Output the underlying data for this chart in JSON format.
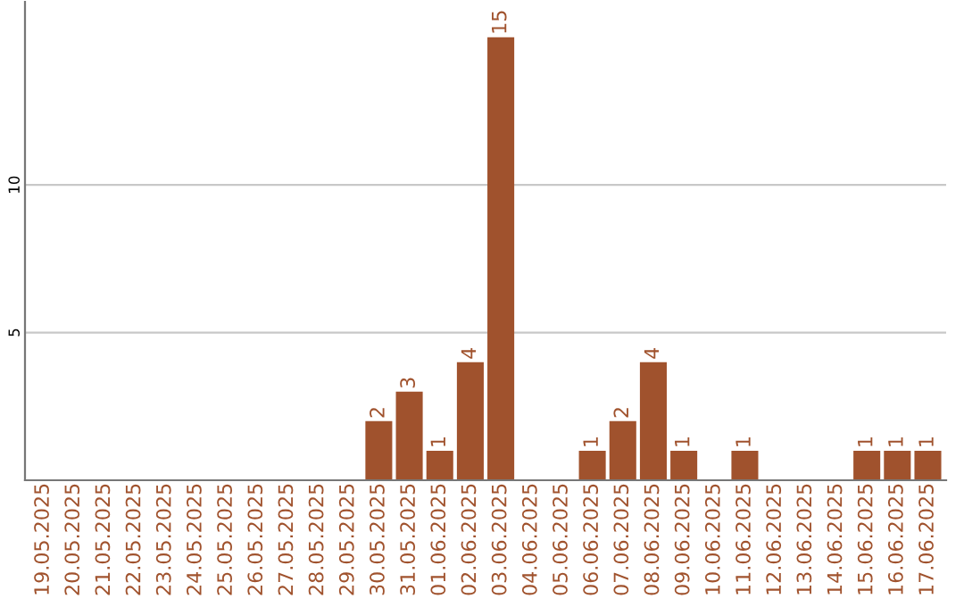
{
  "chart_data": {
    "type": "bar",
    "categories": [
      "19.05.2025",
      "20.05.2025",
      "21.05.2025",
      "22.05.2025",
      "23.05.2025",
      "24.05.2025",
      "25.05.2025",
      "26.05.2025",
      "27.05.2025",
      "28.05.2025",
      "29.05.2025",
      "30.05.2025",
      "31.05.2025",
      "01.06.2025",
      "02.06.2025",
      "03.06.2025",
      "04.06.2025",
      "05.06.2025",
      "06.06.2025",
      "07.06.2025",
      "08.06.2025",
      "09.06.2025",
      "10.06.2025",
      "11.06.2025",
      "12.06.2025",
      "13.06.2025",
      "14.06.2025",
      "15.06.2025",
      "16.06.2025",
      "17.06.2025"
    ],
    "values": [
      0,
      0,
      0,
      0,
      0,
      0,
      0,
      0,
      0,
      0,
      0,
      2,
      3,
      1,
      4,
      15,
      0,
      0,
      1,
      2,
      4,
      1,
      0,
      1,
      0,
      0,
      0,
      1,
      1,
      1
    ],
    "value_labels": [
      null,
      null,
      null,
      null,
      null,
      null,
      null,
      null,
      null,
      null,
      null,
      "2",
      "3",
      "1",
      "4",
      "15",
      null,
      null,
      "1",
      "2",
      "4",
      "1",
      null,
      "1",
      null,
      null,
      null,
      "1",
      "1",
      "1"
    ],
    "color": "#a0522d",
    "ylim": [
      0,
      16.2
    ],
    "yticks": [
      5,
      10
    ],
    "grid": "y",
    "legend": false
  }
}
